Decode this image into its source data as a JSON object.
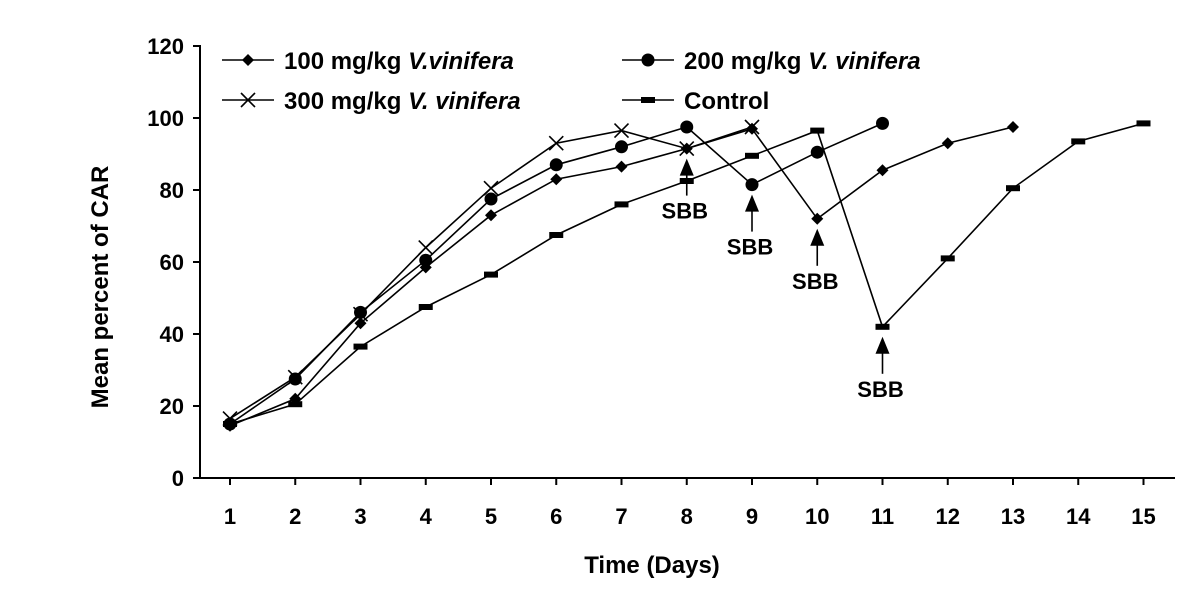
{
  "chart_data": {
    "type": "line",
    "xlabel": "Time (Days)",
    "ylabel": "Mean percent of CAR",
    "xlim": [
      1,
      15
    ],
    "ylim": [
      0,
      120
    ],
    "x_ticks": [
      "1",
      "2",
      "3",
      "4",
      "5",
      "6",
      "7",
      "8",
      "9",
      "10",
      "11",
      "12",
      "13",
      "14",
      "15"
    ],
    "y_ticks": [
      "0",
      "20",
      "40",
      "60",
      "80",
      "100",
      "120"
    ],
    "grid": false,
    "legend_position": "top-left",
    "series": [
      {
        "name_prefix": "100 mg/kg ",
        "name_italic": "V.vinifera",
        "marker": "diamond",
        "points": [
          [
            1,
            14.5
          ],
          [
            2,
            22
          ],
          [
            3,
            43
          ],
          [
            4,
            58.5
          ],
          [
            5,
            73
          ],
          [
            6,
            83
          ],
          [
            7,
            86.5
          ],
          [
            8,
            91.5
          ],
          [
            9,
            97
          ],
          [
            10,
            72
          ],
          [
            11,
            85.5
          ],
          [
            12,
            93
          ],
          [
            13,
            97.5
          ]
        ]
      },
      {
        "name_prefix": "200 mg/kg ",
        "name_italic": "V. vinifera",
        "marker": "circle",
        "points": [
          [
            1,
            15
          ],
          [
            2,
            27.5
          ],
          [
            3,
            46
          ],
          [
            4,
            60.5
          ],
          [
            5,
            77.5
          ],
          [
            6,
            87
          ],
          [
            7,
            92
          ],
          [
            8,
            97.5
          ],
          [
            9,
            81.5
          ],
          [
            10,
            90.5
          ],
          [
            11,
            98.5
          ]
        ]
      },
      {
        "name_prefix": "300 mg/kg ",
        "name_italic": "V. vinifera",
        "marker": "x",
        "points": [
          [
            1,
            16.5
          ],
          [
            2,
            28
          ],
          [
            3,
            45.5
          ],
          [
            4,
            64
          ],
          [
            5,
            80.5
          ],
          [
            6,
            93
          ],
          [
            7,
            96.5
          ],
          [
            8,
            91.5
          ],
          [
            9,
            97.5
          ]
        ]
      },
      {
        "name_prefix": "Control",
        "name_italic": "",
        "marker": "dash",
        "points": [
          [
            1,
            15
          ],
          [
            2,
            20.5
          ],
          [
            3,
            36.5
          ],
          [
            4,
            47.5
          ],
          [
            5,
            56.5
          ],
          [
            6,
            67.5
          ],
          [
            7,
            76
          ],
          [
            8,
            82.5
          ],
          [
            9,
            89.5
          ],
          [
            10,
            96.5
          ],
          [
            11,
            42
          ],
          [
            12,
            61
          ],
          [
            13,
            80.5
          ],
          [
            14,
            93.5
          ],
          [
            15,
            98.5
          ]
        ]
      }
    ],
    "annotations": [
      {
        "text": "SBB",
        "x": 8,
        "y": 91.5
      },
      {
        "text": "SBB",
        "x": 9,
        "y": 81.5
      },
      {
        "text": "SBB",
        "x": 10,
        "y": 72
      },
      {
        "text": "SBB",
        "x": 11,
        "y": 42
      }
    ]
  }
}
